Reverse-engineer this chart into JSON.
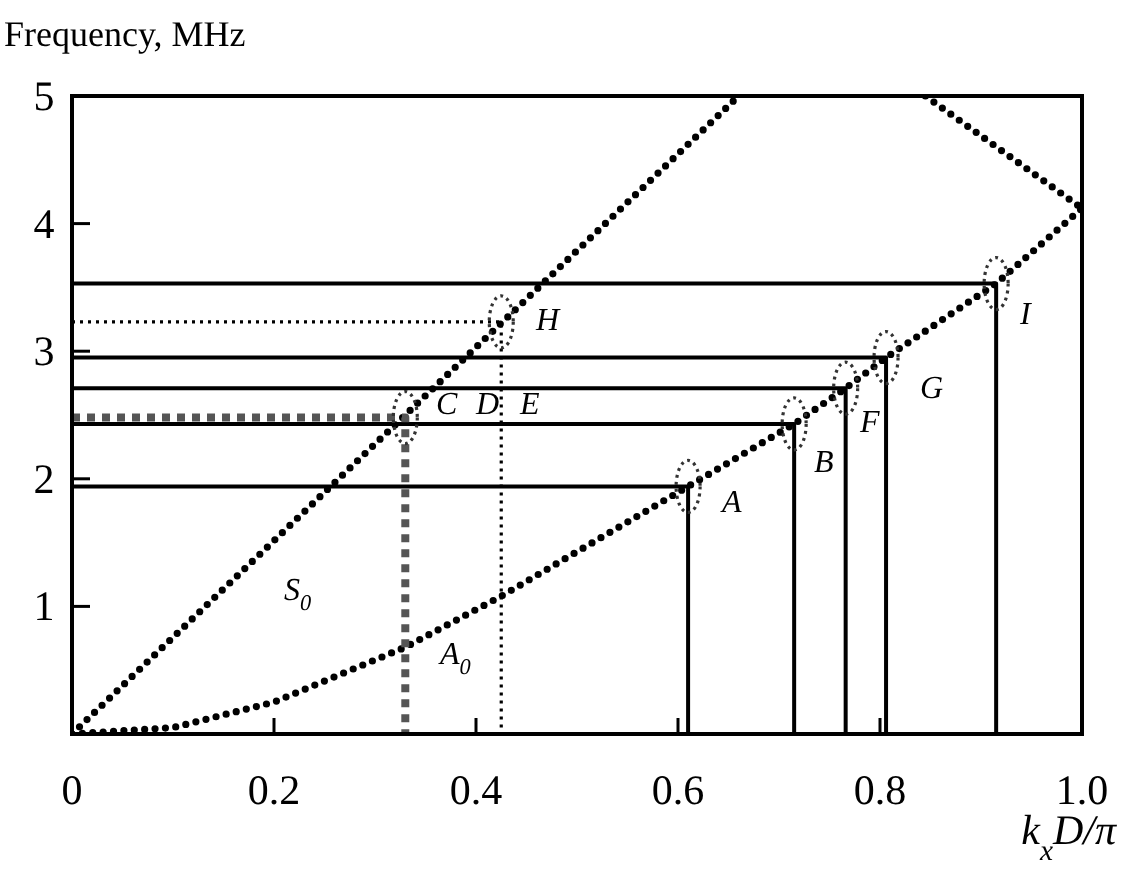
{
  "chart_data": {
    "type": "line",
    "ylabel": "Frequency, MHz",
    "xlabel": "k$_{x}$D/π",
    "xlim": [
      0,
      1
    ],
    "ylim": [
      0,
      5
    ],
    "xticks": [
      0,
      0.2,
      0.4,
      0.6,
      0.8,
      {
        "value": 1,
        "label": "1.0"
      }
    ],
    "yticks": [
      1,
      2,
      3,
      4,
      5
    ],
    "grid": false,
    "series": [
      {
        "color": "#000000",
        "line_style": "dotted",
        "x": [
          0,
          0.33,
          0.66
        ],
        "values": [
          0,
          2.5,
          5
        ]
      },
      {
        "color": "#000000",
        "line_style": "dotted",
        "x": [
          0,
          0.1,
          0.2,
          0.33,
          0.425,
          0.61,
          0.715,
          0.766,
          0.806,
          0.915,
          1.0
        ],
        "values": [
          0,
          0.05,
          0.25,
          0.68,
          1.08,
          1.94,
          2.43,
          2.71,
          2.95,
          3.53,
          4.12
        ]
      },
      {
        "color": "#000000",
        "line_style": "dotted",
        "x": [
          0.845,
          1.0
        ],
        "values": [
          5,
          4.12
        ]
      },
      {
        "color": "#000000",
        "line_style": "solid",
        "x": [
          0,
          0.61,
          0.61
        ],
        "values": [
          1.94,
          1.94,
          0
        ]
      },
      {
        "color": "#000000",
        "line_style": "solid",
        "x": [
          0,
          0.715,
          0.715
        ],
        "values": [
          2.43,
          2.43,
          0
        ]
      },
      {
        "color": "#000000",
        "line_style": "solid",
        "x": [
          0,
          0.766,
          0.766
        ],
        "values": [
          2.71,
          2.71,
          0
        ]
      },
      {
        "color": "#000000",
        "line_style": "solid",
        "x": [
          0,
          0.806,
          0.806
        ],
        "values": [
          2.95,
          2.95,
          0
        ]
      },
      {
        "color": "#000000",
        "line_style": "solid",
        "x": [
          0,
          0.915,
          0.915
        ],
        "values": [
          3.53,
          3.53,
          0
        ]
      },
      {
        "color": "#555555",
        "line_style": "dashed",
        "x": [
          0,
          0.33,
          0.33
        ],
        "values": [
          2.48,
          2.48,
          0
        ]
      },
      {
        "color": "#000000",
        "line_style": "dotted",
        "x": [
          0,
          0.425,
          0.425
        ],
        "values": [
          3.23,
          3.23,
          0
        ]
      }
    ],
    "annotations": [
      "S$_{0}$",
      "A$_{0}$",
      "A",
      "B",
      "C",
      "D",
      "E",
      "F",
      "G",
      "H",
      "I"
    ]
  }
}
